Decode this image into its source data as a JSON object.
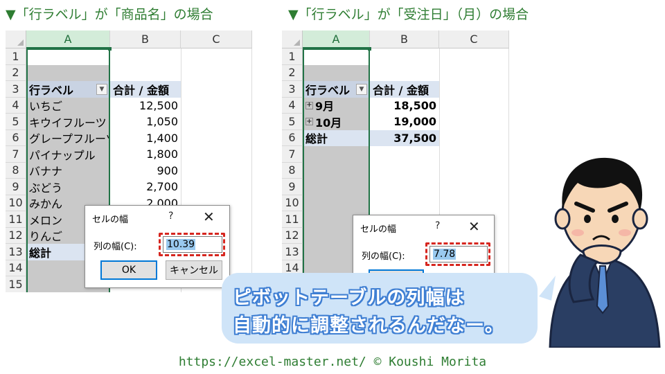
{
  "headings": {
    "left": "▼「行ラベル」が「商品名」の場合",
    "right": "▼「行ラベル」が「受注日」（月）の場合"
  },
  "left_sheet": {
    "columns": [
      "A",
      "B",
      "C"
    ],
    "rows": [
      "1",
      "2",
      "3",
      "4",
      "5",
      "6",
      "7",
      "8",
      "9",
      "10",
      "11",
      "12",
      "13",
      "14",
      "15"
    ],
    "row_label_header": "行ラベル",
    "value_header": "合計 / 金額",
    "items": [
      {
        "label": "いちご",
        "value": "12,500"
      },
      {
        "label": "キウイフルーツ",
        "value": "1,050"
      },
      {
        "label": "グレープフルーツ",
        "value": "1,400"
      },
      {
        "label": "パイナップル",
        "value": "1,800"
      },
      {
        "label": "バナナ",
        "value": "900"
      },
      {
        "label": "ぶどう",
        "value": "2,700"
      },
      {
        "label": "みかん",
        "value": "2,000"
      },
      {
        "label": "メロン",
        "value": ""
      },
      {
        "label": "りんご",
        "value": ""
      }
    ],
    "total_label": "総計"
  },
  "right_sheet": {
    "columns": [
      "A",
      "B",
      "C"
    ],
    "rows": [
      "1",
      "2",
      "3",
      "4",
      "5",
      "6",
      "7",
      "8",
      "9",
      "10",
      "11",
      "12",
      "13",
      "14"
    ],
    "row_label_header": "行ラベル",
    "value_header": "合計 / 金額",
    "items": [
      {
        "label": "9月",
        "value": "18,500"
      },
      {
        "label": "10月",
        "value": "19,000"
      }
    ],
    "total_label": "総計",
    "total_value": "37,500"
  },
  "dialog_left": {
    "title": "セルの幅",
    "help": "?",
    "close": "✕",
    "field_label": "列の幅(C):",
    "field_value": "10.39",
    "ok": "OK",
    "cancel": "キャンセル"
  },
  "dialog_right": {
    "title": "セルの幅",
    "help": "?",
    "close": "✕",
    "field_label": "列の幅(C):",
    "field_value": "7.78"
  },
  "bubble": {
    "line1": "ピボットテーブルの列幅は",
    "line2": "自動的に調整されるんだなー。"
  },
  "footer": "https://excel-master.net/  © Koushi Morita",
  "colors": {
    "accent_green": "#217346",
    "heading_green": "#2e7d32",
    "pivot_header_blue": "#dbe4f1",
    "highlight_red": "#d6261f",
    "bubble_blue": "#cfe4f8"
  }
}
